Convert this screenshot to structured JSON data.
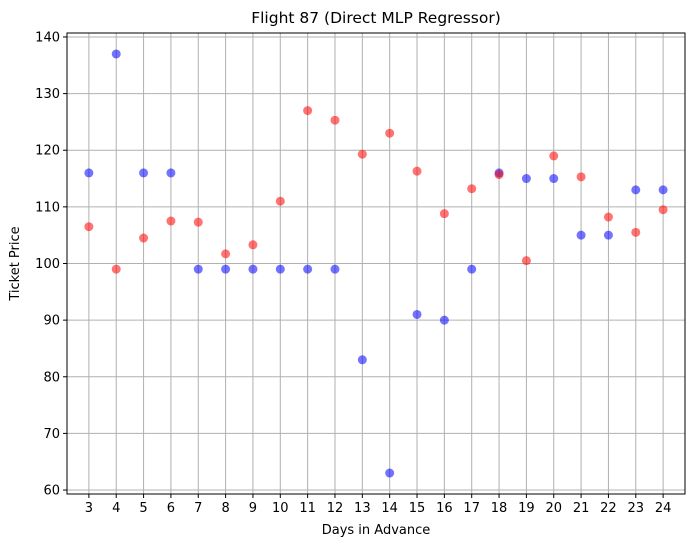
{
  "chart_data": {
    "type": "scatter",
    "title": "Flight 87 (Direct MLP Regressor)",
    "xlabel": "Days in Advance",
    "ylabel": "Ticket Price",
    "x_ticks": [
      3,
      4,
      5,
      6,
      7,
      8,
      9,
      10,
      11,
      12,
      13,
      14,
      15,
      16,
      17,
      18,
      19,
      20,
      21,
      22,
      23,
      24
    ],
    "y_ticks": [
      60,
      70,
      80,
      90,
      100,
      110,
      120,
      130,
      140
    ],
    "xlim": [
      2.2,
      24.8
    ],
    "ylim": [
      59.3,
      140.7
    ],
    "grid": true,
    "series": [
      {
        "color": "#0000ff",
        "alpha": 0.55,
        "x": [
          3,
          4,
          5,
          6,
          7,
          8,
          9,
          10,
          11,
          12,
          13,
          14,
          15,
          16,
          17,
          18,
          19,
          20,
          21,
          22,
          23,
          24
        ],
        "y": [
          116,
          137,
          116,
          116,
          99,
          99,
          99,
          99,
          99,
          99,
          83,
          63,
          91,
          90,
          99,
          116,
          115,
          115,
          105,
          105,
          113,
          113
        ]
      },
      {
        "color": "#ff0000",
        "alpha": 0.55,
        "x": [
          3,
          4,
          5,
          6,
          7,
          8,
          9,
          10,
          11,
          12,
          13,
          14,
          15,
          16,
          17,
          18,
          19,
          20,
          21,
          22,
          23,
          24
        ],
        "y": [
          106.5,
          99,
          104.5,
          107.5,
          107.3,
          101.7,
          103.3,
          111,
          127,
          125.3,
          119.3,
          123,
          116.3,
          108.8,
          113.2,
          115.7,
          100.5,
          119,
          115.3,
          108.2,
          105.5,
          109.5
        ]
      }
    ]
  }
}
